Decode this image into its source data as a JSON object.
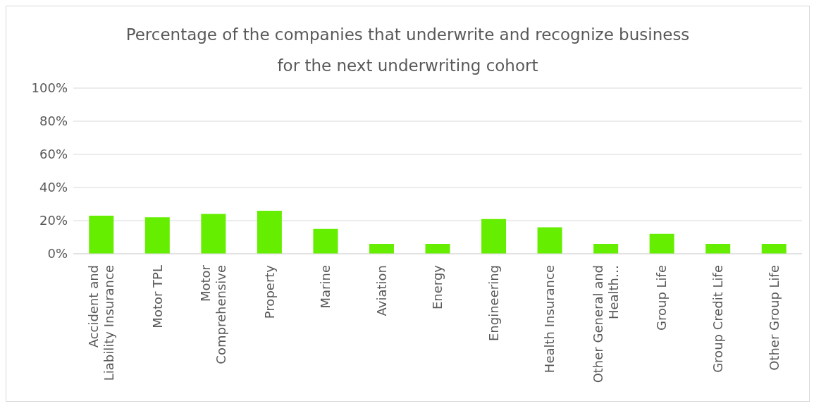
{
  "chart_data": {
    "type": "bar",
    "title": "Percentage of the companies that underwrite and recognize business for the next underwriting cohort",
    "categories": [
      "Accident and Liability Insurance",
      "Motor TPL",
      "Motor Comprehensive",
      "Property",
      "Marine",
      "Aviation",
      "Energy",
      "Engineering",
      "Health Insurance",
      "Other General and Health…",
      "Group Life",
      "Group Credit Life",
      "Other Group Life"
    ],
    "values": [
      23,
      22,
      24,
      26,
      15,
      6,
      6,
      21,
      16,
      6,
      12,
      6,
      6
    ],
    "color": "#66ee00",
    "ylim": [
      0,
      100
    ],
    "yticks": [
      {
        "value": 0,
        "label": "0%"
      },
      {
        "value": 20,
        "label": "20%"
      },
      {
        "value": 40,
        "label": "40%"
      },
      {
        "value": 60,
        "label": "60%"
      },
      {
        "value": 80,
        "label": "80%"
      },
      {
        "value": 100,
        "label": "100%"
      }
    ],
    "grid": "y"
  }
}
